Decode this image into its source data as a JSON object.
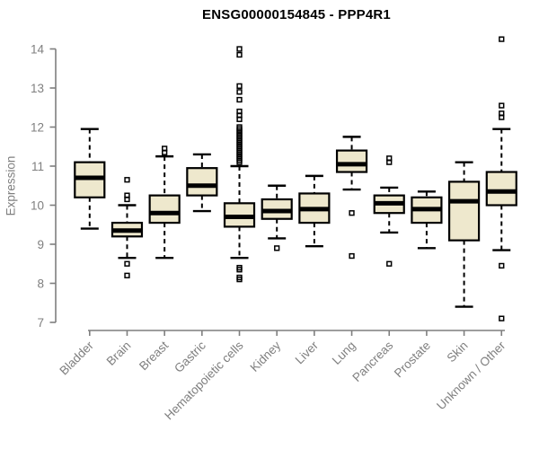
{
  "chart_data": {
    "type": "boxplot",
    "title": "ENSG00000154845 - PPP4R1",
    "ylabel": "Expression",
    "xlabel": "",
    "ylim": [
      7,
      14.3
    ],
    "yticks": [
      7,
      8,
      9,
      10,
      11,
      12,
      13,
      14
    ],
    "grid": "off",
    "legend": "none",
    "categories": [
      "Bladder",
      "Brain",
      "Breast",
      "Gastric",
      "Hematopoietic cells",
      "Kidney",
      "Liver",
      "Lung",
      "Pancreas",
      "Prostate",
      "Skin",
      "Unknown / Other"
    ],
    "series": [
      {
        "name": "Bladder",
        "low": 9.4,
        "q1": 10.2,
        "median": 10.7,
        "q3": 11.1,
        "high": 11.95,
        "outliers": []
      },
      {
        "name": "Brain",
        "low": 8.65,
        "q1": 9.2,
        "median": 9.35,
        "q3": 9.55,
        "high": 10.0,
        "outliers": [
          10.65,
          10.25,
          10.15,
          8.5,
          8.2
        ]
      },
      {
        "name": "Breast",
        "low": 8.65,
        "q1": 9.55,
        "median": 9.8,
        "q3": 10.25,
        "high": 11.25,
        "outliers": [
          11.45,
          11.35
        ]
      },
      {
        "name": "Gastric",
        "low": 9.85,
        "q1": 10.25,
        "median": 10.5,
        "q3": 10.95,
        "high": 11.3,
        "outliers": []
      },
      {
        "name": "Hematopoietic cells",
        "low": 8.65,
        "q1": 9.45,
        "median": 9.7,
        "q3": 10.05,
        "high": 11.0,
        "outliers": [
          14.0,
          13.85,
          13.05,
          12.9,
          12.7,
          12.4,
          12.3,
          12.2,
          12.0,
          11.95,
          11.9,
          11.85,
          11.8,
          11.75,
          11.7,
          11.65,
          11.6,
          11.55,
          11.5,
          11.45,
          11.4,
          11.35,
          11.3,
          11.25,
          11.2,
          11.15,
          11.1,
          8.4,
          8.35,
          8.15,
          8.1
        ]
      },
      {
        "name": "Kidney",
        "low": 9.15,
        "q1": 9.65,
        "median": 9.85,
        "q3": 10.15,
        "high": 10.5,
        "outliers": [
          8.9
        ]
      },
      {
        "name": "Liver",
        "low": 8.95,
        "q1": 9.55,
        "median": 9.9,
        "q3": 10.3,
        "high": 10.75,
        "outliers": []
      },
      {
        "name": "Lung",
        "low": 10.4,
        "q1": 10.85,
        "median": 11.05,
        "q3": 11.4,
        "high": 11.75,
        "outliers": [
          9.8,
          8.7
        ]
      },
      {
        "name": "Pancreas",
        "low": 9.3,
        "q1": 9.8,
        "median": 10.05,
        "q3": 10.25,
        "high": 10.45,
        "outliers": [
          11.2,
          11.1,
          8.5
        ]
      },
      {
        "name": "Prostate",
        "low": 8.9,
        "q1": 9.55,
        "median": 9.9,
        "q3": 10.2,
        "high": 10.35,
        "outliers": []
      },
      {
        "name": "Skin",
        "low": 7.4,
        "q1": 9.1,
        "median": 10.1,
        "q3": 10.6,
        "high": 11.1,
        "outliers": []
      },
      {
        "name": "Unknown / Other",
        "low": 8.85,
        "q1": 10.0,
        "median": 10.35,
        "q3": 10.85,
        "high": 11.95,
        "outliers": [
          14.25,
          12.55,
          12.35,
          12.25,
          8.45,
          7.1
        ]
      }
    ],
    "style": {
      "box_fill": "#EEE8CD",
      "box_stroke": "#000000",
      "median_color": "#000000",
      "axis_color": "#7F7F7F",
      "title_color": "#000000",
      "background": "#FFFFFF"
    }
  }
}
